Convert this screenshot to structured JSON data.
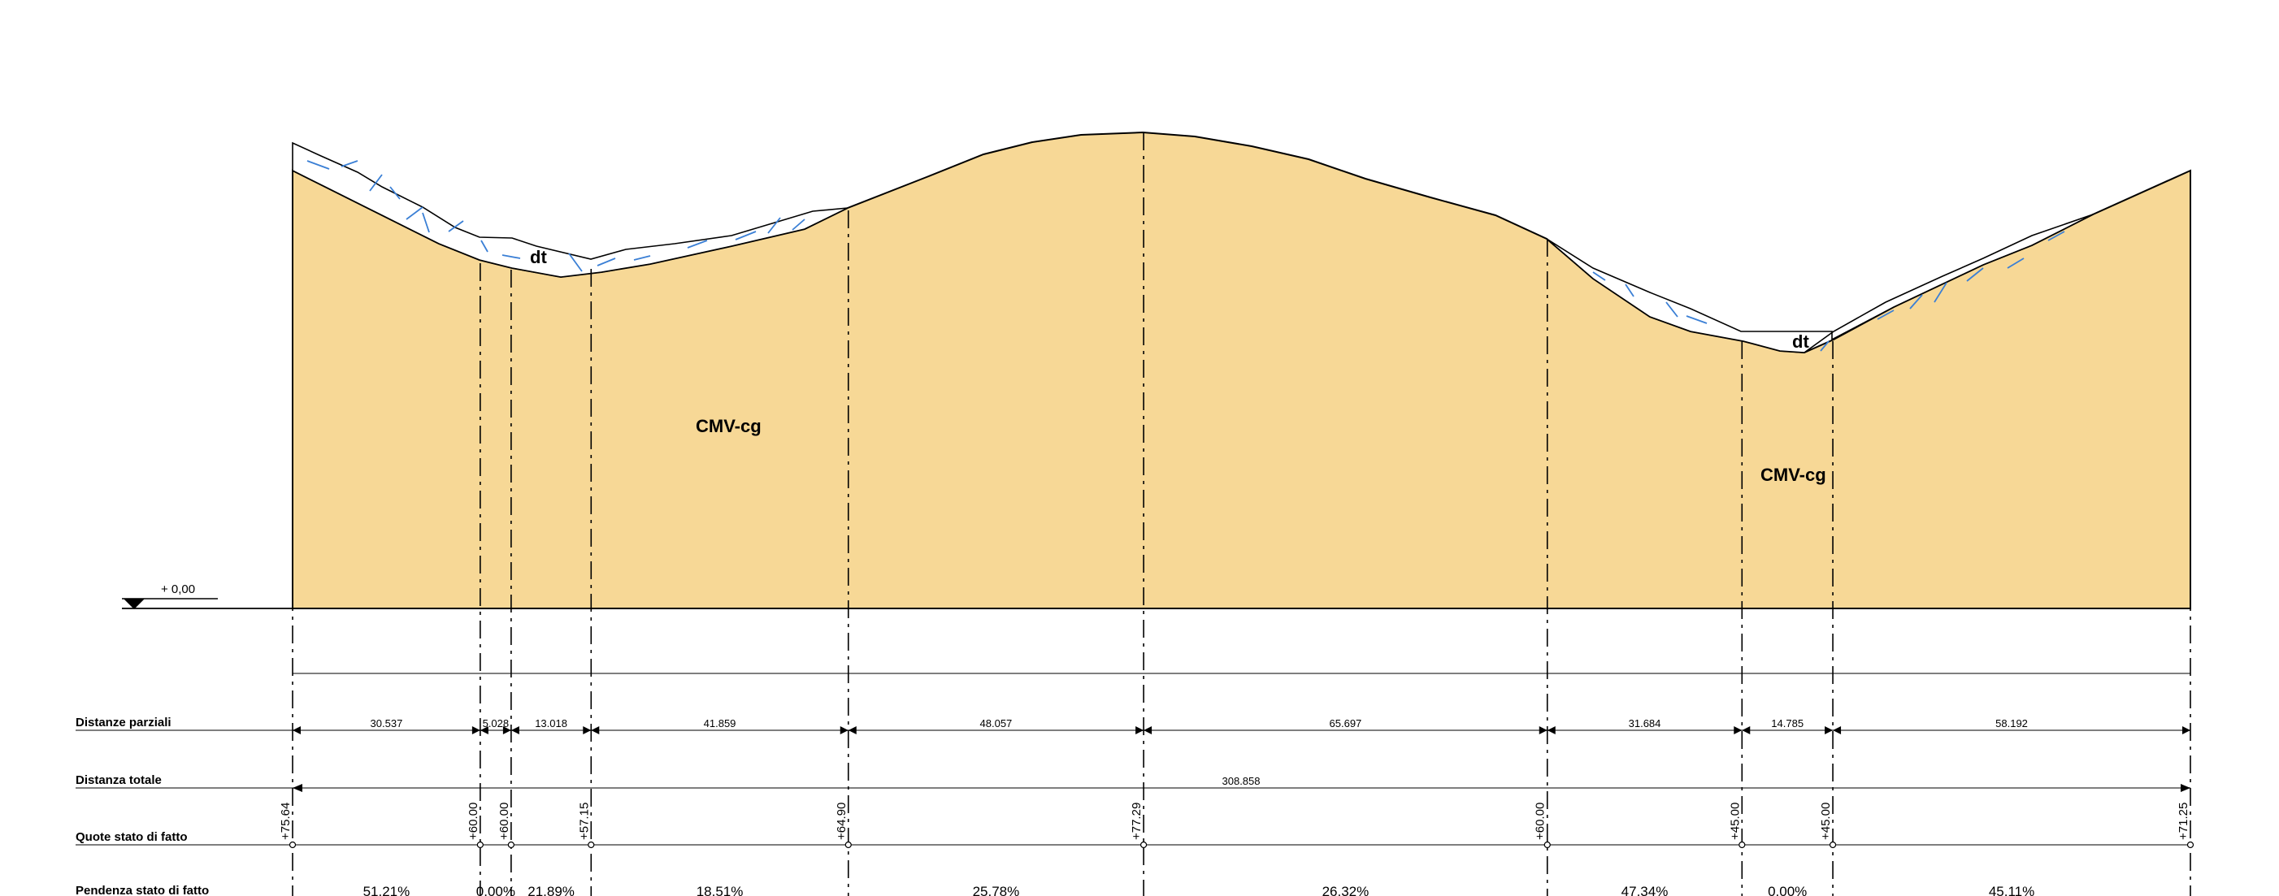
{
  "datum": {
    "label": "+ 0,00"
  },
  "layers": {
    "soil_label": "CMV-cg",
    "debris_label": "dt",
    "soil_color": "#F7D896",
    "hatch_color": "#3A7FD5"
  },
  "rows": {
    "partial": "Distanze parziali",
    "total": "Distanza totale",
    "heights": "Quote stato di fatto",
    "slope": "Pendenza stato di fatto"
  },
  "profile": {
    "stations": [
      0,
      30.537,
      35.565,
      48.583,
      90.442,
      138.499,
      204.196,
      235.88,
      250.665,
      308.857
    ],
    "partial_distances": [
      "30.537",
      "5.028",
      "13.018",
      "41.859",
      "48.057",
      "65.697",
      "31.684",
      "14.785",
      "58.192"
    ],
    "total_distance": "308.858",
    "heights": [
      "+75.64",
      "+60.00",
      "+60.00",
      "+57.15",
      "+64.90",
      "+77.29",
      "+60.00",
      "+45.00",
      "+45.00",
      "+71.25"
    ],
    "slopes": [
      "51.21%",
      "0.00%",
      "21.89%",
      "18.51%",
      "25.78%",
      "26.32%",
      "47.34%",
      "0.00%",
      "45.11%"
    ]
  }
}
